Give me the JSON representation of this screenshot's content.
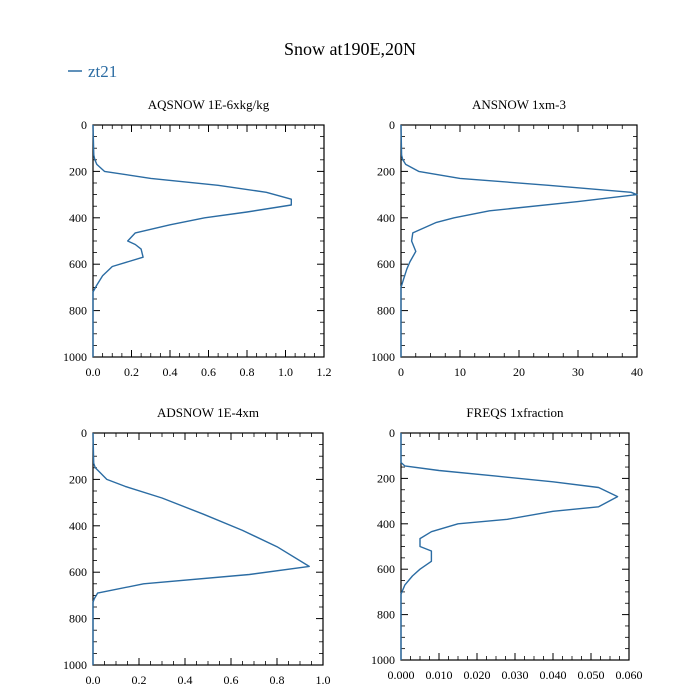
{
  "figure": {
    "title": "Snow at190E,20N",
    "legend": {
      "label": "zt21",
      "placement": "top-left"
    },
    "colors": {
      "series": "#2b6ca3",
      "axes": "#000000",
      "background": "#ffffff"
    }
  },
  "chart_data": [
    {
      "type": "line",
      "title": "AQSNOW  1E-6xkg/kg",
      "xlabel": "",
      "ylabel": "",
      "xlim": [
        0,
        1.2
      ],
      "ylim": [
        1000,
        0
      ],
      "xticks": [
        0,
        0.2,
        0.4,
        0.6,
        0.8,
        1.0,
        1.2
      ],
      "xtick_labels": [
        "0.0",
        "0.2",
        "0.4",
        "0.6",
        "0.8",
        "1.0",
        "1.2"
      ],
      "yticks": [
        0,
        200,
        400,
        600,
        800,
        1000
      ],
      "ytick_labels": [
        "0",
        "200",
        "400",
        "600",
        "800",
        "1000"
      ],
      "grid": false,
      "series": [
        {
          "name": "zt21",
          "x": [
            0,
            0.004,
            0.01,
            0.02,
            0.06,
            0.3,
            0.65,
            0.9,
            1.03,
            1.03,
            0.8,
            0.58,
            0.4,
            0.22,
            0.18,
            0.22,
            0.25,
            0.26,
            0.1,
            0.05,
            0.02,
            0,
            0
          ],
          "y": [
            0,
            130,
            150,
            170,
            200,
            230,
            260,
            290,
            320,
            345,
            375,
            400,
            430,
            465,
            500,
            515,
            535,
            570,
            610,
            650,
            690,
            720,
            1000
          ]
        }
      ]
    },
    {
      "type": "line",
      "title": "ANSNOW  1xm-3",
      "xlabel": "",
      "ylabel": "",
      "xlim": [
        0,
        40
      ],
      "ylim": [
        1000,
        0
      ],
      "xticks": [
        0,
        10,
        20,
        30,
        40
      ],
      "xtick_labels": [
        "0",
        "10",
        "20",
        "30",
        "40"
      ],
      "yticks": [
        0,
        200,
        400,
        600,
        800,
        1000
      ],
      "ytick_labels": [
        "0",
        "200",
        "400",
        "600",
        "800",
        "1000"
      ],
      "grid": false,
      "series": [
        {
          "name": "zt21",
          "x": [
            0,
            0.1,
            0.3,
            0.8,
            3,
            10,
            25,
            39,
            40,
            30,
            15,
            9,
            6,
            2,
            1.8,
            2.5,
            1.5,
            1,
            0.5,
            0,
            0
          ],
          "y": [
            0,
            130,
            150,
            170,
            200,
            230,
            260,
            290,
            300,
            330,
            370,
            400,
            420,
            465,
            500,
            545,
            590,
            620,
            660,
            700,
            1000
          ]
        }
      ]
    },
    {
      "type": "line",
      "title": "ADSNOW  1E-4xm",
      "xlabel": "",
      "ylabel": "",
      "xlim": [
        0,
        1.0
      ],
      "ylim": [
        1000,
        0
      ],
      "xticks": [
        0,
        0.2,
        0.4,
        0.6,
        0.8,
        1.0
      ],
      "xtick_labels": [
        "0.0",
        "0.2",
        "0.4",
        "0.6",
        "0.8",
        "1.0"
      ],
      "yticks": [
        0,
        200,
        400,
        600,
        800,
        1000
      ],
      "ytick_labels": [
        "0",
        "200",
        "400",
        "600",
        "800",
        "1000"
      ],
      "grid": false,
      "series": [
        {
          "name": "zt21",
          "x": [
            0,
            0.003,
            0.01,
            0.03,
            0.06,
            0.14,
            0.3,
            0.48,
            0.65,
            0.8,
            0.94,
            0.68,
            0.22,
            0.02,
            0.005,
            0,
            0
          ],
          "y": [
            0,
            130,
            150,
            170,
            200,
            230,
            280,
            350,
            420,
            490,
            575,
            610,
            650,
            690,
            715,
            730,
            1000
          ]
        }
      ]
    },
    {
      "type": "line",
      "title": "FREQS  1xfraction",
      "xlabel": "",
      "ylabel": "",
      "xlim": [
        0,
        0.06
      ],
      "ylim": [
        1000,
        0
      ],
      "xticks": [
        0,
        0.01,
        0.02,
        0.03,
        0.04,
        0.05,
        0.06
      ],
      "xtick_labels": [
        "0.000",
        "0.010",
        "0.020",
        "0.030",
        "0.040",
        "0.050",
        "0.060"
      ],
      "yticks": [
        0,
        200,
        400,
        600,
        800,
        1000
      ],
      "ytick_labels": [
        "0",
        "200",
        "400",
        "600",
        "800",
        "1000"
      ],
      "grid": false,
      "series": [
        {
          "name": "zt21",
          "x": [
            0,
            0,
            0.001,
            0.01,
            0.025,
            0.04,
            0.052,
            0.057,
            0.052,
            0.04,
            0.028,
            0.015,
            0.008,
            0.005,
            0.005,
            0.008,
            0.008,
            0.005,
            0.003,
            0.001,
            0,
            0
          ],
          "y": [
            0,
            130,
            145,
            165,
            190,
            215,
            240,
            280,
            325,
            345,
            380,
            400,
            435,
            465,
            500,
            520,
            565,
            600,
            630,
            670,
            710,
            1000
          ]
        }
      ]
    }
  ]
}
